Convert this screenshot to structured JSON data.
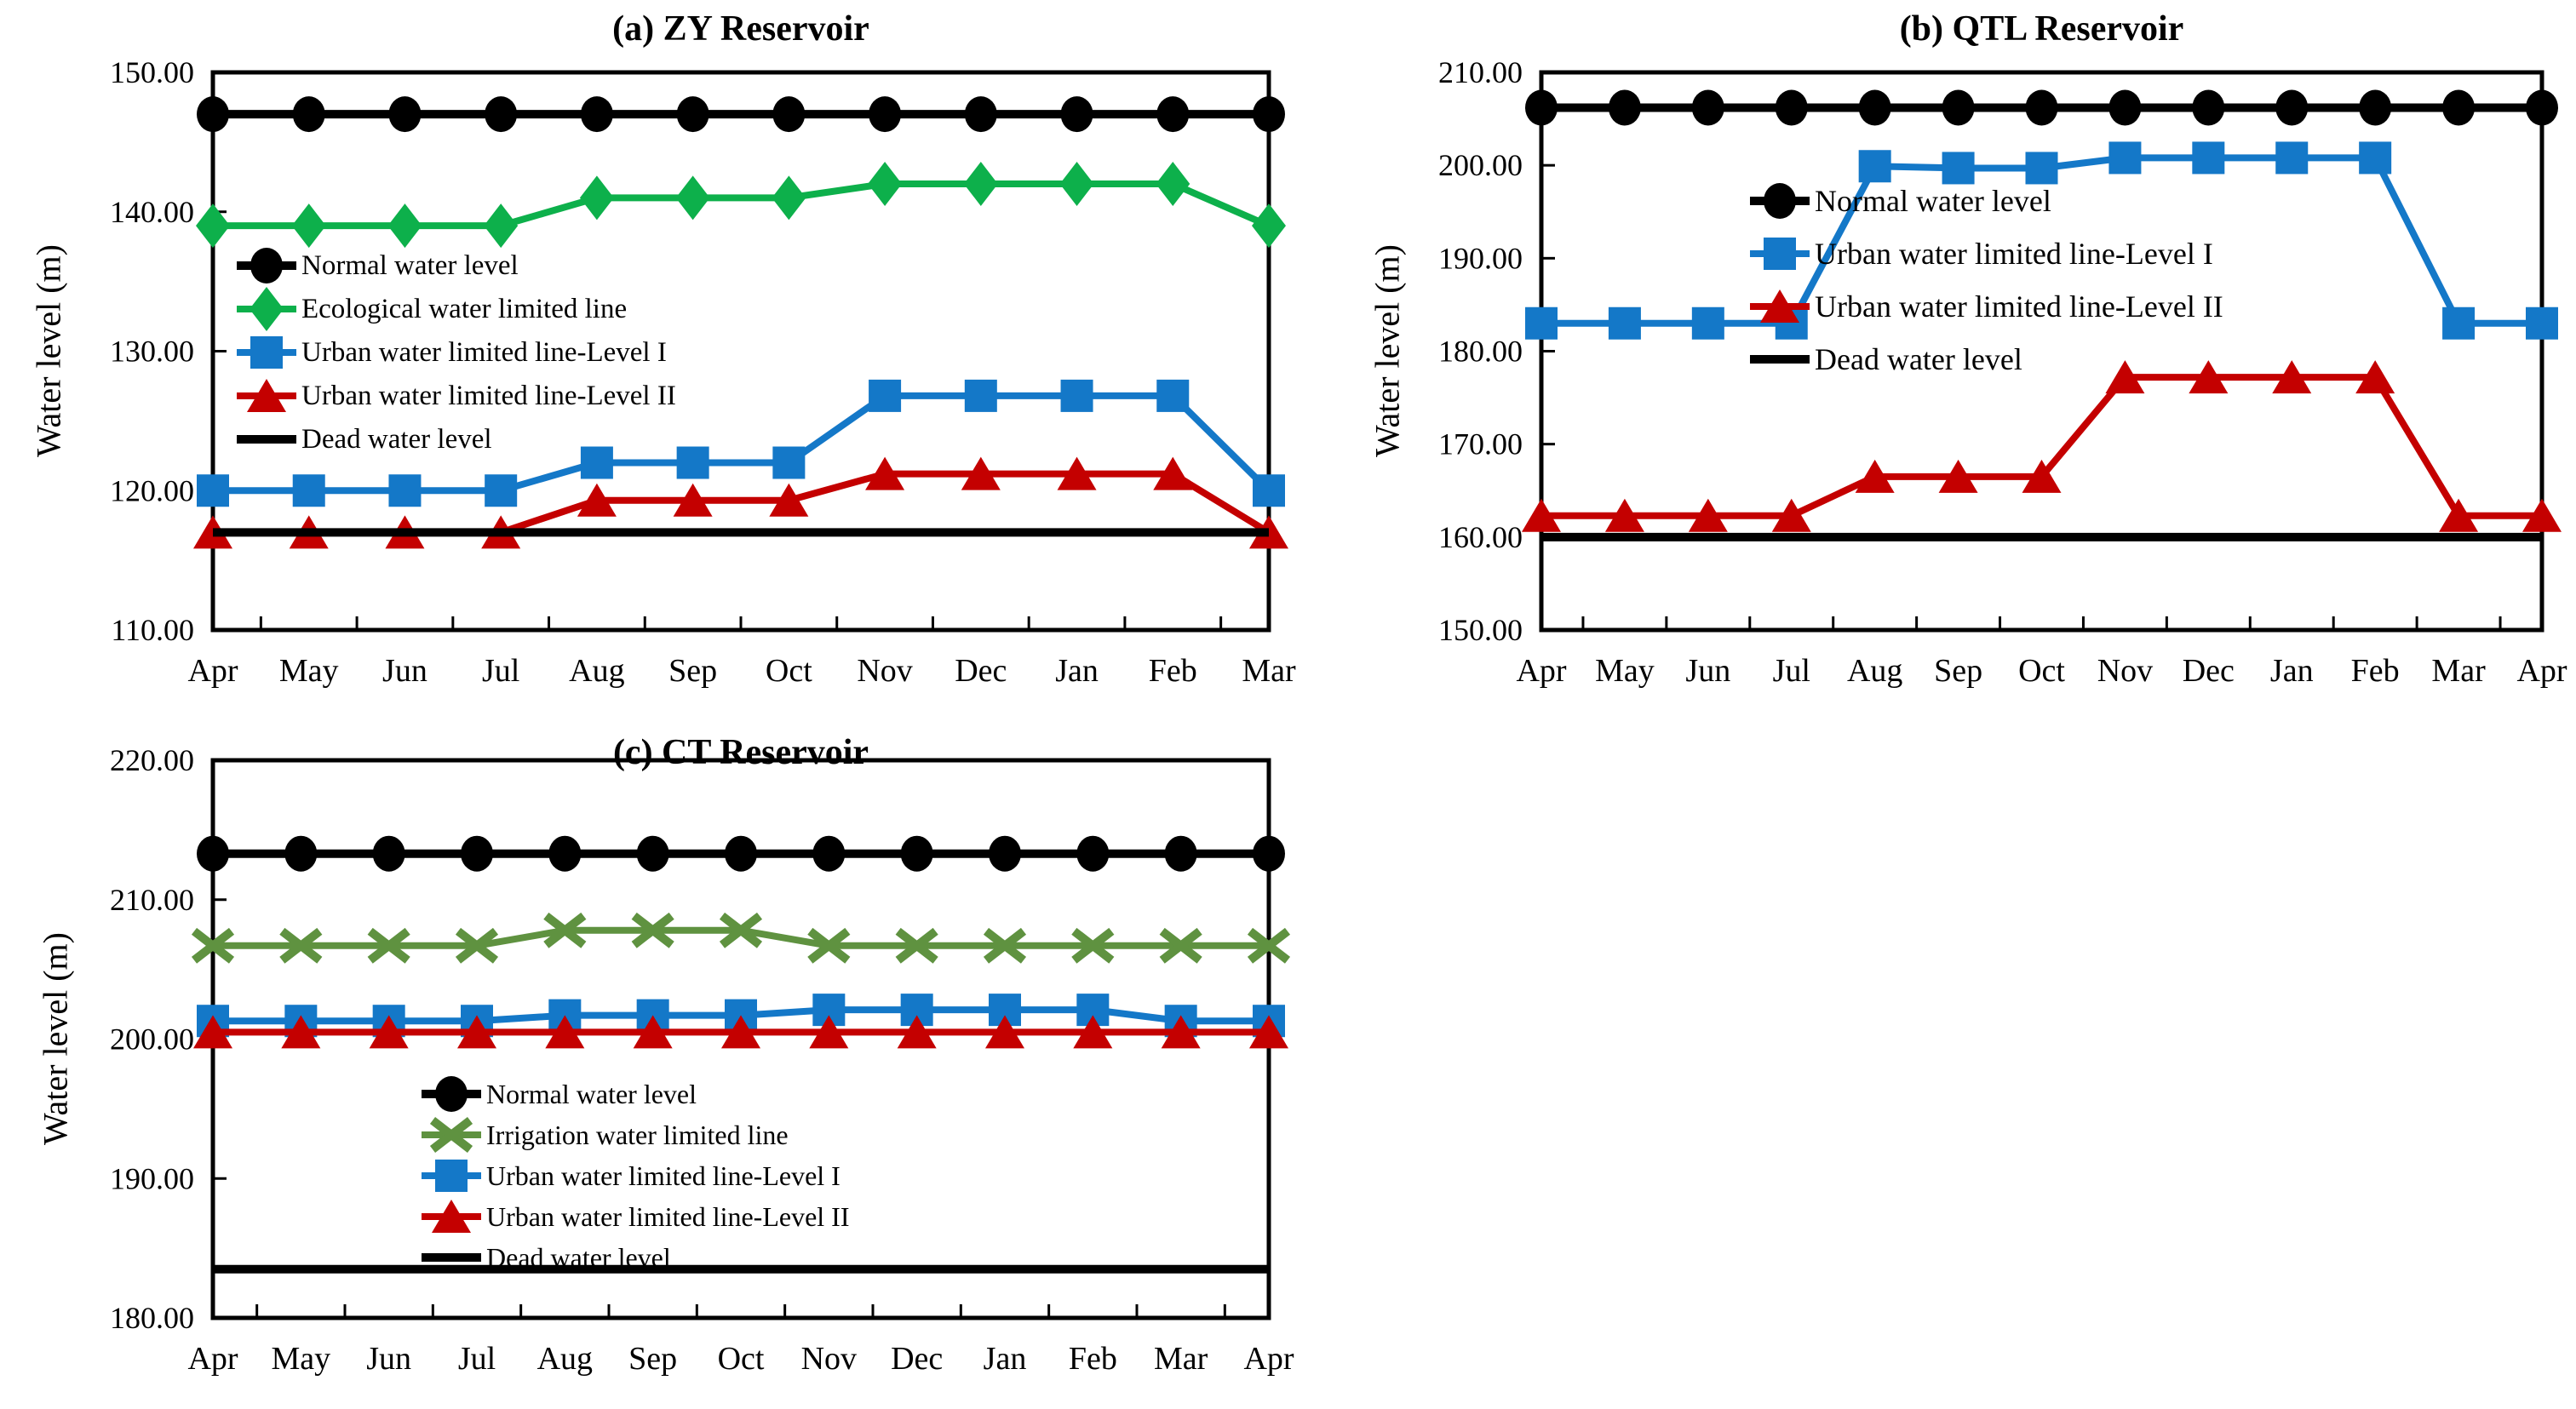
{
  "figure": {
    "background": "#ffffff",
    "text_color": "#000000",
    "accent_colors": {
      "normal_black": "#000000",
      "ecological_green": "#0DB04B",
      "urban1_blue": "#1478C8",
      "urban2_red": "#C40000",
      "irrigation_olive": "#5F9240"
    }
  },
  "chart_data": [
    {
      "id": "a",
      "type": "line",
      "title": "(a) ZY Reservoir",
      "ylabel": "Water level (m)",
      "xlabel": "",
      "grid": false,
      "legend_position": "inside-upper-left",
      "ylim": [
        110,
        150
      ],
      "ytick_step": 10,
      "ytick_labels": [
        "110.00",
        "120.00",
        "130.00",
        "140.00",
        "150.00"
      ],
      "categories": [
        "Apr",
        "May",
        "Jun",
        "Jul",
        "Aug",
        "Sep",
        "Oct",
        "Nov",
        "Dec",
        "Jan",
        "Feb",
        "Mar"
      ],
      "series": [
        {
          "name": "Normal water level",
          "color": "#000000",
          "marker": "circle",
          "values": [
            147,
            147,
            147,
            147,
            147,
            147,
            147,
            147,
            147,
            147,
            147,
            147
          ]
        },
        {
          "name": "Ecological water limited line",
          "color": "#0DB04B",
          "marker": "diamond",
          "values": [
            139,
            139,
            139,
            139,
            141,
            141,
            141,
            142,
            142,
            142,
            142,
            139
          ]
        },
        {
          "name": "Urban water limited line-Level I",
          "color": "#1478C8",
          "marker": "square",
          "values": [
            120,
            120,
            120,
            120,
            122,
            122,
            122,
            126.8,
            126.8,
            126.8,
            126.8,
            120
          ]
        },
        {
          "name": "Urban water limited line-Level II",
          "color": "#C40000",
          "marker": "triangle",
          "values": [
            117,
            117,
            117,
            117,
            119.3,
            119.3,
            119.3,
            121.2,
            121.2,
            121.2,
            121.2,
            117
          ]
        },
        {
          "name": "Dead water level",
          "color": "#000000",
          "marker": "none",
          "values": [
            117,
            117,
            117,
            117,
            117,
            117,
            117,
            117,
            117,
            117,
            117,
            117
          ]
        }
      ]
    },
    {
      "id": "b",
      "type": "line",
      "title": "(b) QTL Reservoir",
      "ylabel": "Water level (m)",
      "xlabel": "",
      "grid": false,
      "legend_position": "inside-upper-middle",
      "ylim": [
        150,
        210
      ],
      "ytick_step": 10,
      "ytick_labels": [
        "150.00",
        "160.00",
        "170.00",
        "180.00",
        "190.00",
        "200.00",
        "210.00"
      ],
      "categories": [
        "Apr",
        "May",
        "Jun",
        "Jul",
        "Aug",
        "Sep",
        "Oct",
        "Nov",
        "Dec",
        "Jan",
        "Feb",
        "Mar",
        "Apr"
      ],
      "series": [
        {
          "name": "Normal water level",
          "color": "#000000",
          "marker": "circle",
          "values": [
            206.2,
            206.2,
            206.2,
            206.2,
            206.2,
            206.2,
            206.2,
            206.2,
            206.2,
            206.2,
            206.2,
            206.2,
            206.2
          ]
        },
        {
          "name": "Urban water limited line-Level I",
          "color": "#1478C8",
          "marker": "square",
          "values": [
            183,
            183,
            183,
            183,
            199.9,
            199.7,
            199.7,
            200.8,
            200.8,
            200.8,
            200.8,
            183,
            183
          ]
        },
        {
          "name": "Urban water limited line-Level II",
          "color": "#C40000",
          "marker": "triangle",
          "values": [
            162.3,
            162.3,
            162.3,
            162.3,
            166.5,
            166.5,
            166.5,
            177.2,
            177.2,
            177.2,
            177.2,
            162.3,
            162.3
          ]
        },
        {
          "name": "Dead water level",
          "color": "#000000",
          "marker": "none",
          "values": [
            160,
            160,
            160,
            160,
            160,
            160,
            160,
            160,
            160,
            160,
            160,
            160,
            160
          ]
        }
      ]
    },
    {
      "id": "c",
      "type": "line",
      "title": "(c) CT Reservoir",
      "ylabel": "Water level (m)",
      "xlabel": "",
      "grid": false,
      "legend_position": "inside-lower-left",
      "ylim": [
        180,
        220
      ],
      "ytick_step": 10,
      "ytick_labels": [
        "180.00",
        "190.00",
        "200.00",
        "210.00",
        "220.00"
      ],
      "categories": [
        "Apr",
        "May",
        "Jun",
        "Jul",
        "Aug",
        "Sep",
        "Oct",
        "Nov",
        "Dec",
        "Jan",
        "Feb",
        "Mar",
        "Apr"
      ],
      "series": [
        {
          "name": "Normal water level",
          "color": "#000000",
          "marker": "circle",
          "values": [
            213.3,
            213.3,
            213.3,
            213.3,
            213.3,
            213.3,
            213.3,
            213.3,
            213.3,
            213.3,
            213.3,
            213.3,
            213.3
          ]
        },
        {
          "name": "Irrigation water limited line",
          "color": "#5F9240",
          "marker": "x",
          "values": [
            206.7,
            206.7,
            206.7,
            206.7,
            207.8,
            207.8,
            207.8,
            206.7,
            206.7,
            206.7,
            206.7,
            206.7,
            206.7
          ]
        },
        {
          "name": "Urban water limited line-Level I",
          "color": "#1478C8",
          "marker": "square",
          "values": [
            201.3,
            201.3,
            201.3,
            201.3,
            201.7,
            201.7,
            201.7,
            202.1,
            202.1,
            202.1,
            202.1,
            201.3,
            201.3
          ]
        },
        {
          "name": "Urban water limited line-Level II",
          "color": "#C40000",
          "marker": "triangle",
          "values": [
            200.5,
            200.5,
            200.5,
            200.5,
            200.5,
            200.5,
            200.5,
            200.5,
            200.5,
            200.5,
            200.5,
            200.5,
            200.5
          ]
        },
        {
          "name": "Dead water level",
          "color": "#000000",
          "marker": "none",
          "values": [
            183.5,
            183.5,
            183.5,
            183.5,
            183.5,
            183.5,
            183.5,
            183.5,
            183.5,
            183.5,
            183.5,
            183.5,
            183.5
          ]
        }
      ]
    }
  ]
}
